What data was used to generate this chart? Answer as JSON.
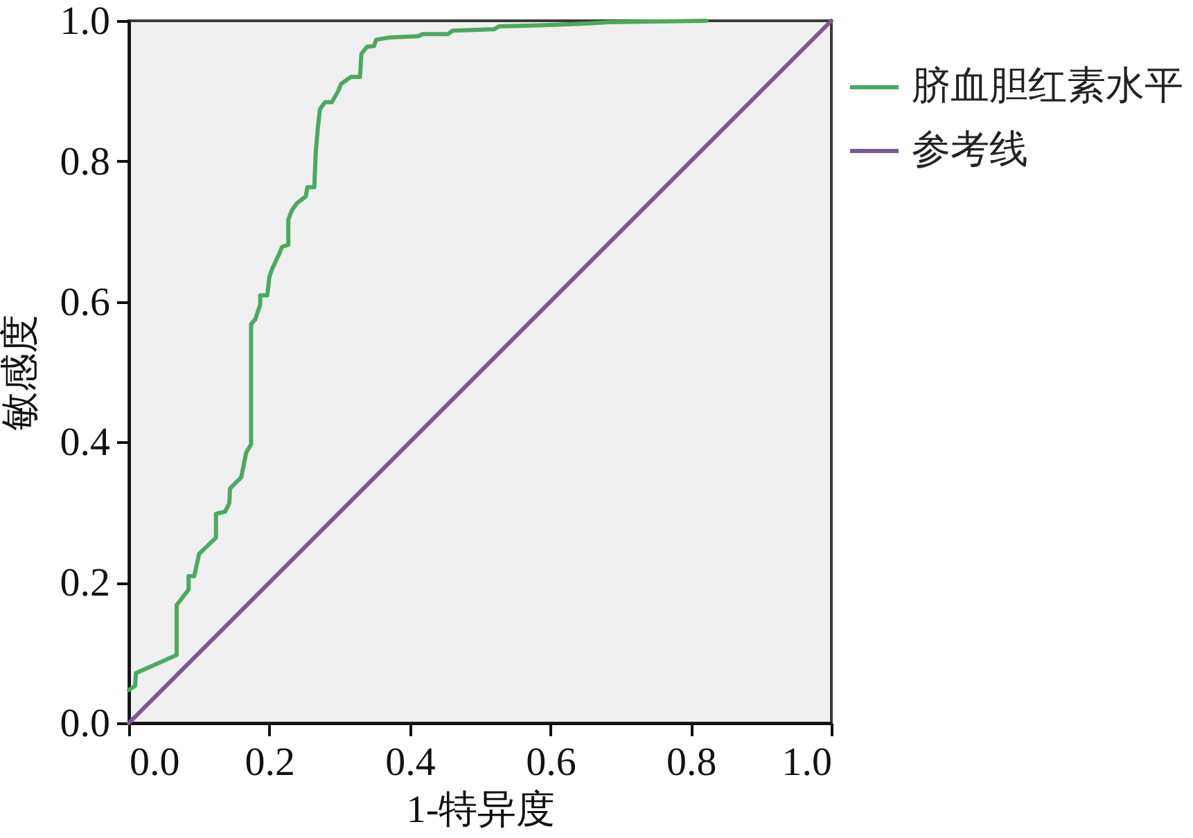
{
  "chart_data": {
    "type": "line",
    "xlabel": "1-特异度",
    "ylabel": "敏感度",
    "xlim": [
      0,
      1
    ],
    "ylim": [
      0,
      1
    ],
    "xticks": [
      {
        "value": 0,
        "label": "0.0"
      },
      0.2,
      0.4,
      0.6,
      0.8,
      {
        "value": 1,
        "label": "1.0"
      }
    ],
    "yticks": [
      {
        "value": 0,
        "label": "0.0"
      },
      0.2,
      0.4,
      0.6,
      0.8,
      {
        "value": 1,
        "label": "1.0"
      }
    ],
    "grid": false,
    "legend": "right",
    "series": [
      {
        "name": "脐血胆红素水平",
        "color": "#4aaa5f",
        "x": [
          0,
          0.009,
          0.01,
          0.068,
          0.068,
          0.085,
          0.085,
          0.093,
          0.1,
          0.124,
          0.124,
          0.137,
          0.143,
          0.144,
          0.16,
          0.167,
          0.174,
          0.174,
          0.18,
          0.187,
          0.187,
          0.197,
          0.2,
          0.204,
          0.214,
          0.218,
          0.227,
          0.227,
          0.232,
          0.239,
          0.252,
          0.254,
          0.264,
          0.266,
          0.269,
          0.272,
          0.279,
          0.289,
          0.298,
          0.302,
          0.316,
          0.329,
          0.331,
          0.339,
          0.349,
          0.352,
          0.369,
          0.412,
          0.418,
          0.454,
          0.461,
          0.52,
          0.527,
          0.602,
          0.651,
          0.684,
          0.822
        ],
        "values": [
          0.047,
          0.053,
          0.071,
          0.097,
          0.168,
          0.19,
          0.209,
          0.209,
          0.241,
          0.264,
          0.298,
          0.301,
          0.313,
          0.334,
          0.35,
          0.385,
          0.397,
          0.568,
          0.575,
          0.596,
          0.609,
          0.609,
          0.635,
          0.647,
          0.668,
          0.678,
          0.681,
          0.717,
          0.73,
          0.74,
          0.75,
          0.763,
          0.763,
          0.813,
          0.847,
          0.874,
          0.884,
          0.884,
          0.9,
          0.91,
          0.92,
          0.92,
          0.953,
          0.963,
          0.964,
          0.973,
          0.976,
          0.978,
          0.981,
          0.981,
          0.986,
          0.988,
          0.992,
          0.994,
          0.996,
          0.998,
          1.0
        ]
      },
      {
        "name": "参考线",
        "color": "#7a5a8c",
        "x": [
          0,
          1
        ],
        "values": [
          0,
          1
        ]
      }
    ]
  }
}
